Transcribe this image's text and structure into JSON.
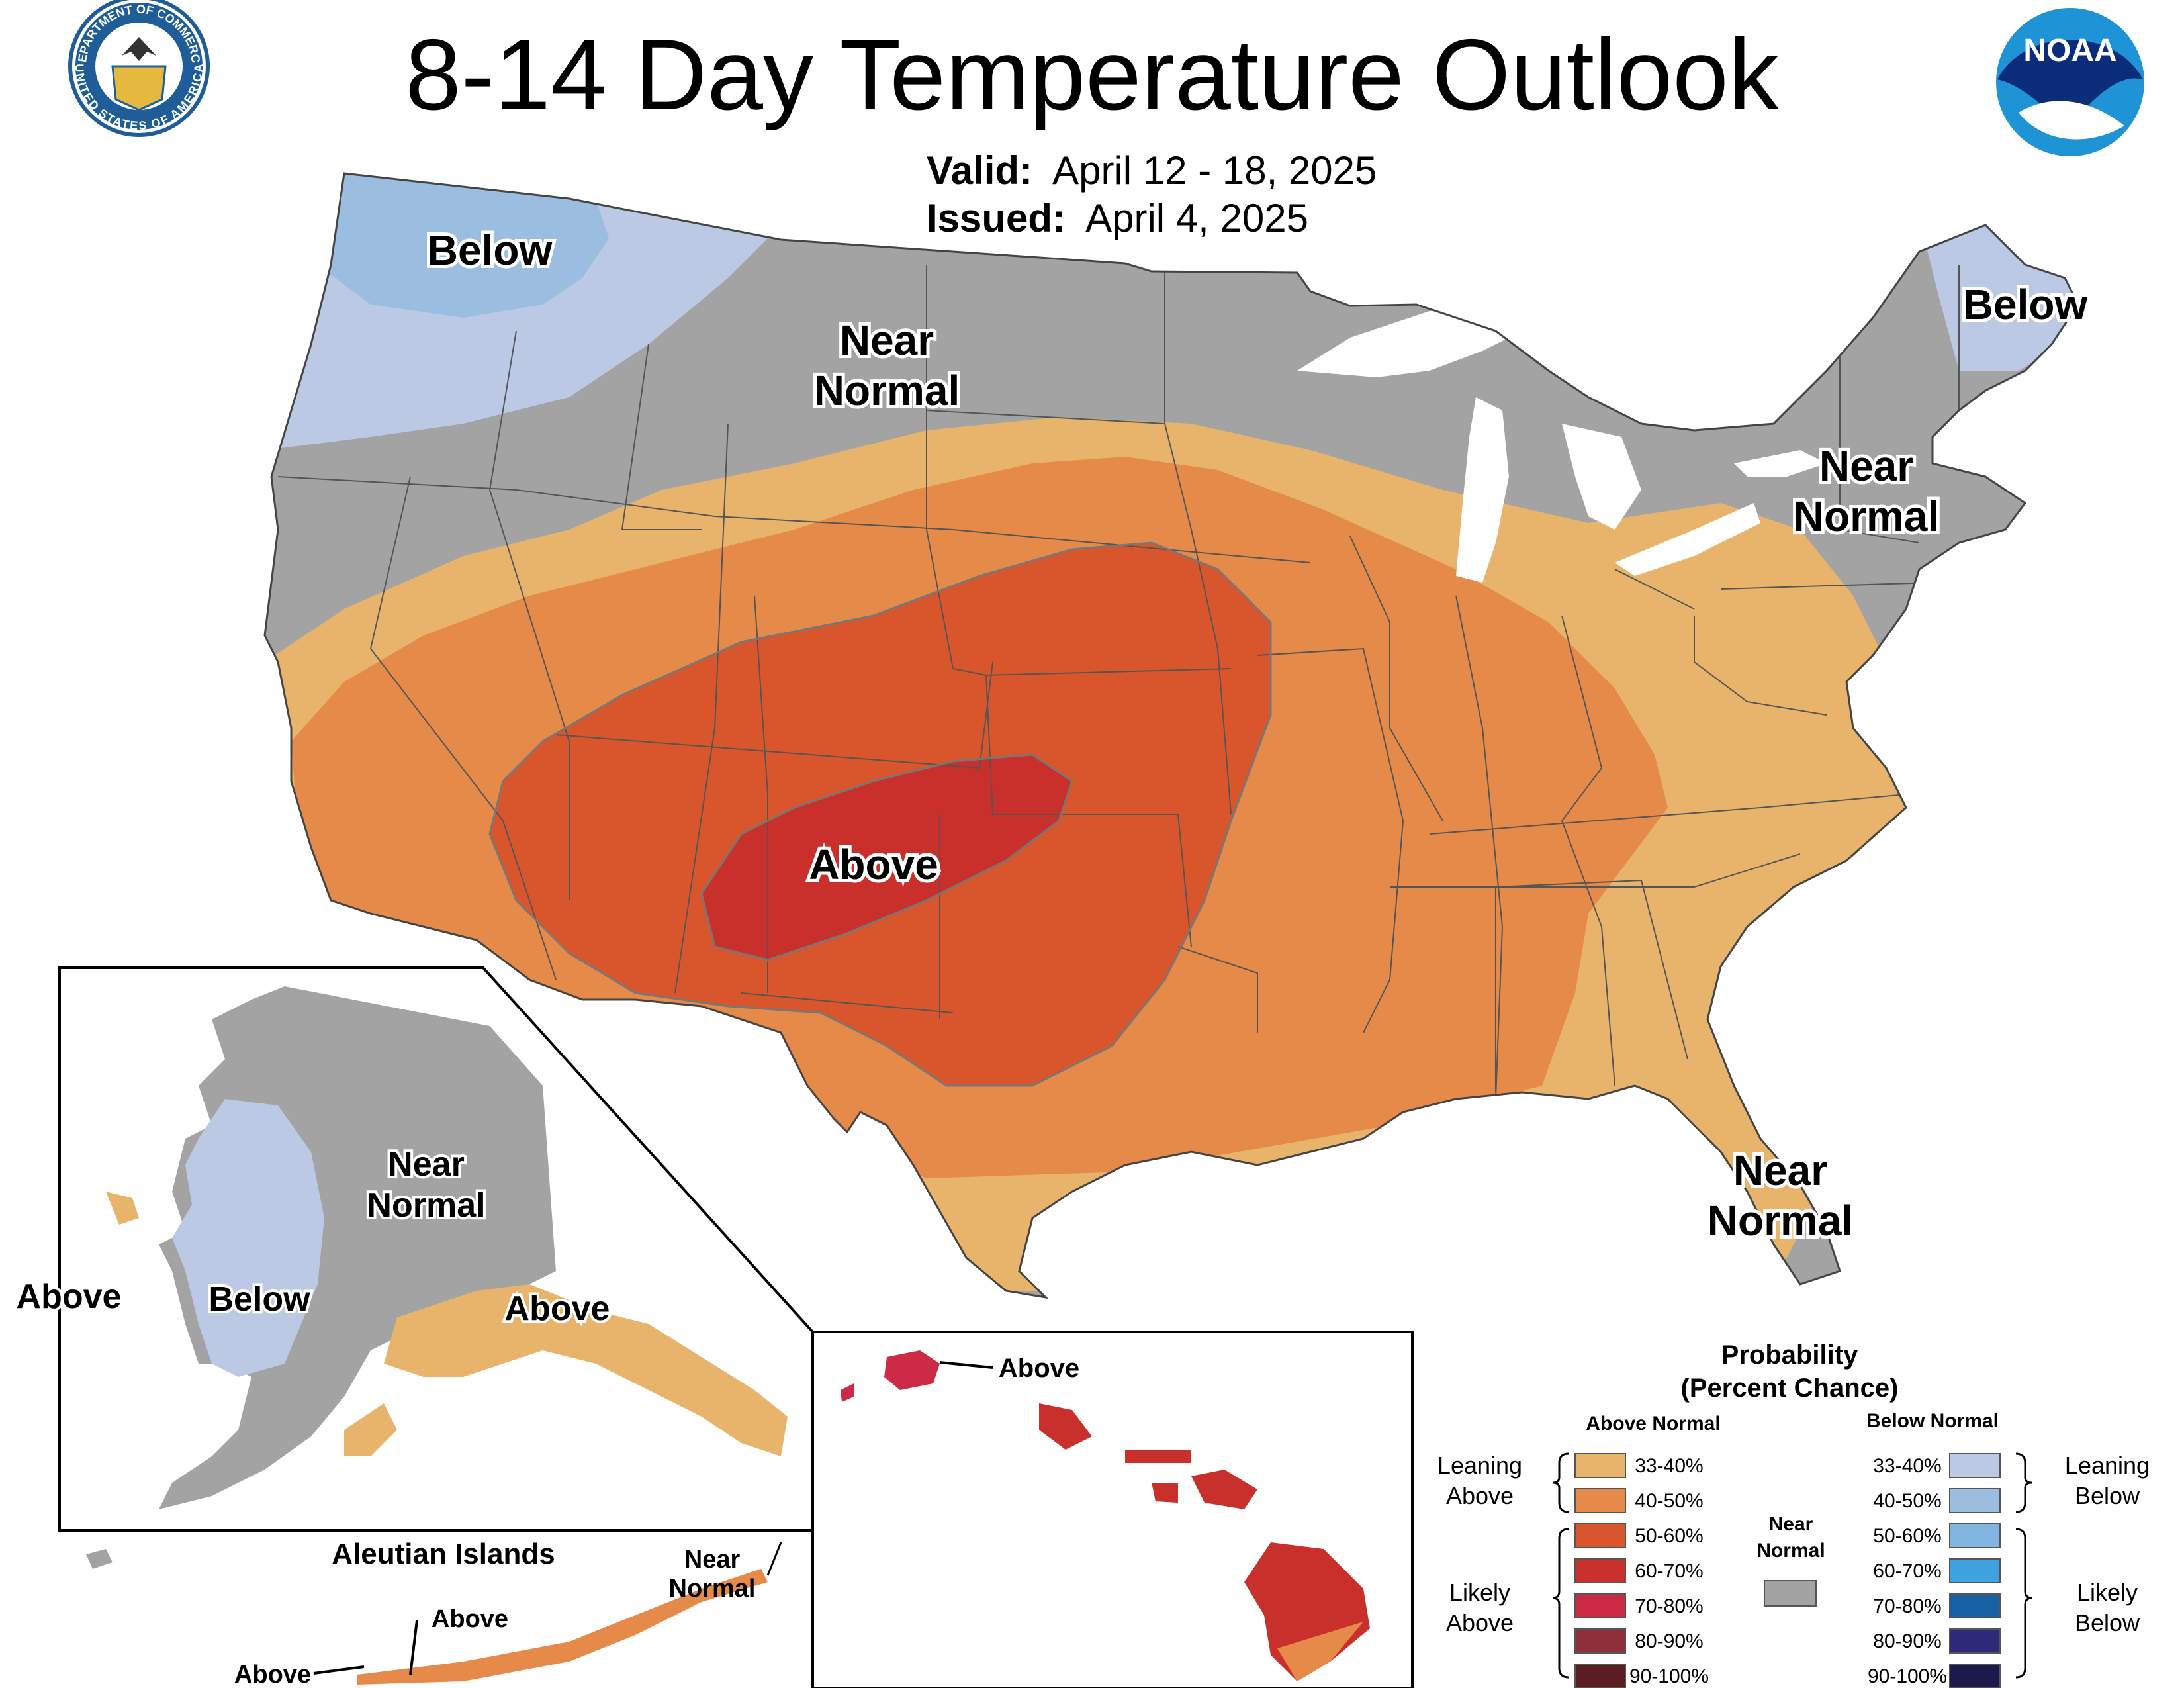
{
  "header": {
    "title": "8-14 Day Temperature Outlook",
    "valid_label": "Valid:",
    "valid_value": "April 12 - 18, 2025",
    "issued_label": "Issued:",
    "issued_value": "April 4, 2025"
  },
  "logos": {
    "commerce_top": "DEPARTMENT OF COMMERCE",
    "commerce_bottom": "UNITED STATES OF AMERICA",
    "noaa": "NOAA"
  },
  "map_labels": {
    "nw_below": "Below",
    "north_near_1": "Near",
    "north_near_2": "Normal",
    "ne_below": "Below",
    "ne_near_1": "Near",
    "ne_near_2": "Normal",
    "sw_above": "Above",
    "fl_near_1": "Near",
    "fl_near_2": "Normal"
  },
  "alaska": {
    "near_1": "Near",
    "near_2": "Normal",
    "below": "Below",
    "above_south": "Above",
    "above_west": "Above",
    "aleutian_title": "Aleutian Islands",
    "aleutian_near_1": "Near",
    "aleutian_near_2": "Normal",
    "aleutian_above_1": "Above",
    "aleutian_above_2": "Above"
  },
  "hawaii": {
    "label": "Above"
  },
  "legend": {
    "title_1": "Probability",
    "title_2": "(Percent Chance)",
    "above_header": "Above Normal",
    "below_header": "Below Normal",
    "leaning_above_1": "Leaning",
    "leaning_above_2": "Above",
    "likely_above_1": "Likely",
    "likely_above_2": "Above",
    "leaning_below_1": "Leaning",
    "leaning_below_2": "Below",
    "likely_below_1": "Likely",
    "likely_below_2": "Below",
    "near_1": "Near",
    "near_2": "Normal",
    "near_color": "#a3a3a3",
    "above": [
      {
        "label": "33-40%",
        "color": "#e8b46b"
      },
      {
        "label": "40-50%",
        "color": "#e58a48"
      },
      {
        "label": "50-60%",
        "color": "#d9562d"
      },
      {
        "label": "60-70%",
        "color": "#c9302c"
      },
      {
        "label": "70-80%",
        "color": "#cc2a45"
      },
      {
        "label": "80-90%",
        "color": "#8f2f3a"
      },
      {
        "label": "90-100%",
        "color": "#5a1e22"
      }
    ],
    "below": [
      {
        "label": "33-40%",
        "color": "#bcc9e5"
      },
      {
        "label": "40-50%",
        "color": "#9bbde0"
      },
      {
        "label": "50-60%",
        "color": "#7fb5e0"
      },
      {
        "label": "60-70%",
        "color": "#3fa2e0"
      },
      {
        "label": "70-80%",
        "color": "#1660a3"
      },
      {
        "label": "80-90%",
        "color": "#2f2a7a"
      },
      {
        "label": "90-100%",
        "color": "#1c1a4d"
      }
    ]
  },
  "colors": {
    "near": "#a3a3a3",
    "a1": "#e8b46b",
    "a2": "#e58a48",
    "a3": "#d9562d",
    "a4": "#c9302c",
    "a5": "#cc2a45",
    "b1": "#bcc9e5",
    "b2": "#9bbde0",
    "lakes": "#ffffff",
    "noaa_blue": "#1e93d6",
    "seal_blue": "#1f5d99",
    "seal_gold": "#e5b840"
  }
}
